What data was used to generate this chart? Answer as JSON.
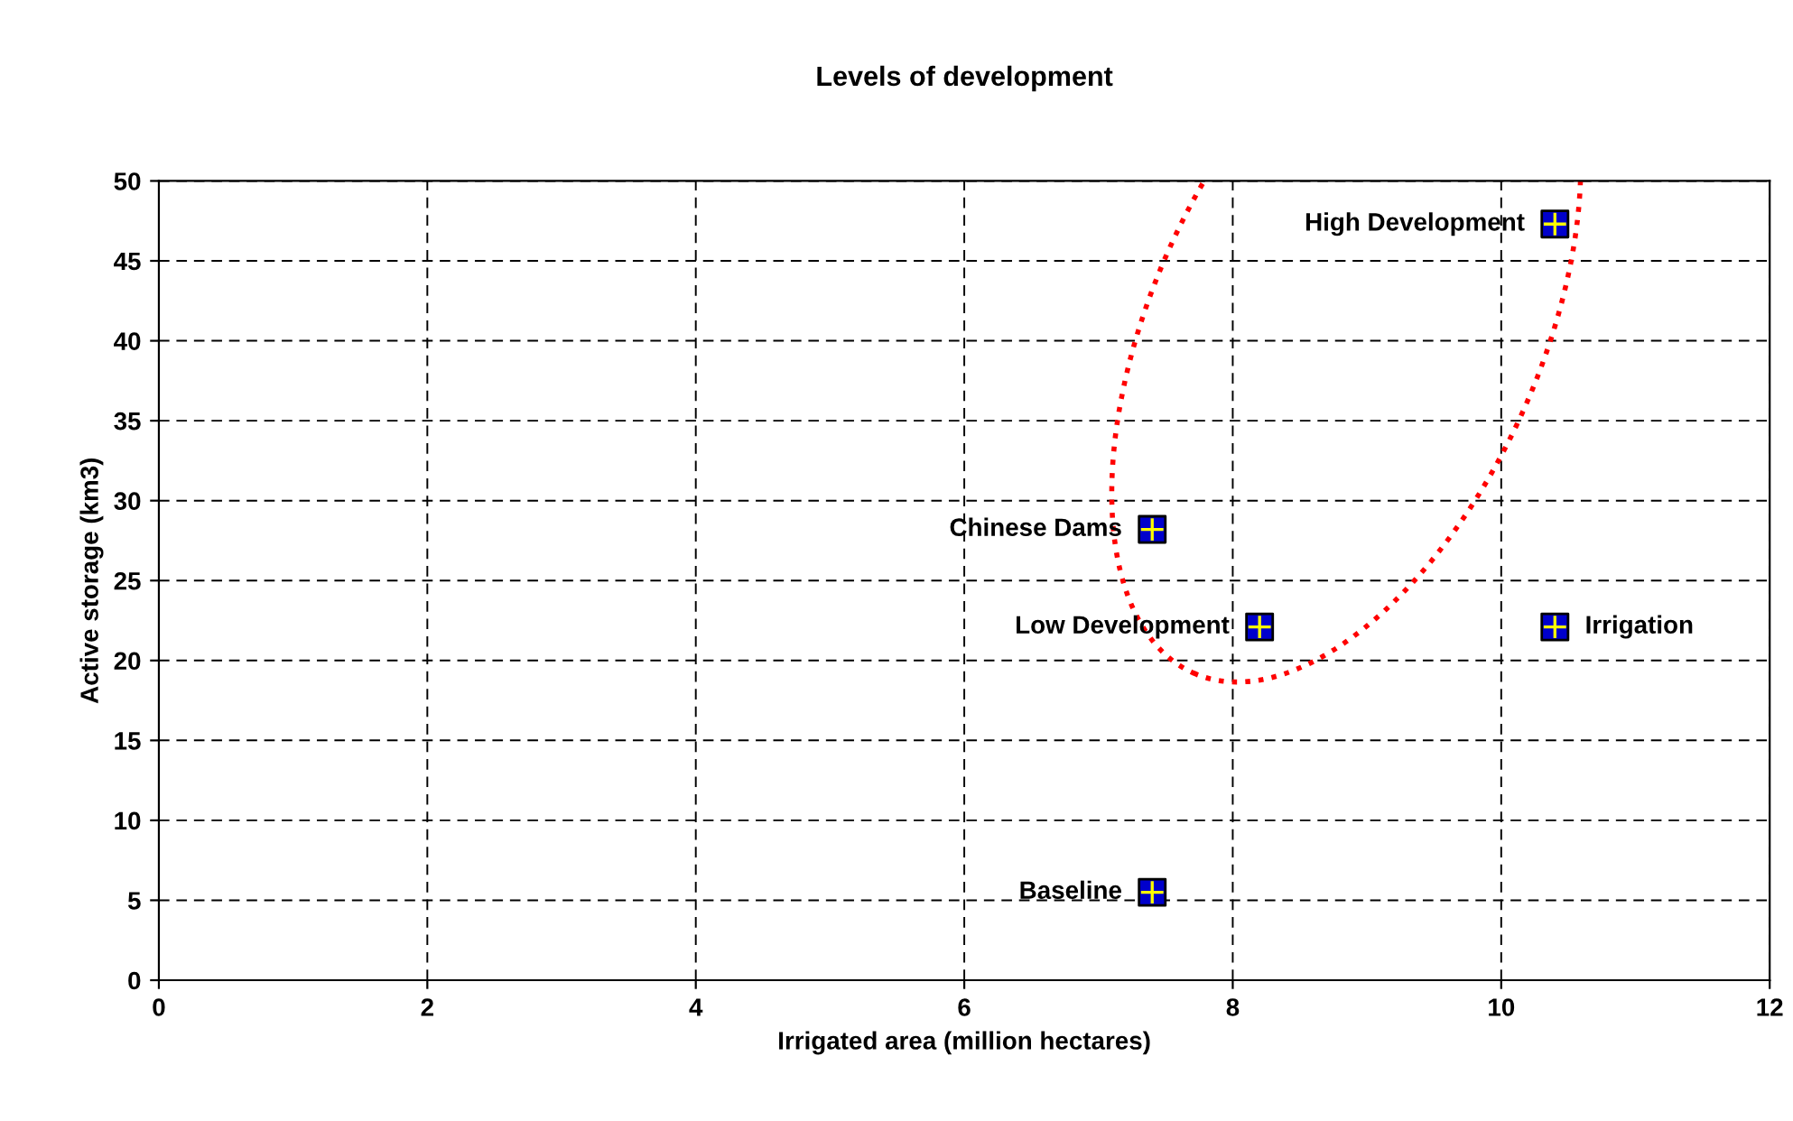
{
  "chart_data": {
    "type": "scatter",
    "title": "Levels of development",
    "xlabel": "Irrigated area (million hectares)",
    "ylabel": "Active storage (km3)",
    "x": [
      10.4,
      7.4,
      8.2,
      10.4,
      7.4
    ],
    "series": [
      {
        "color": "#0000cc",
        "values": [
          47.3,
          28.2,
          22.1,
          22.1,
          5.5
        ]
      }
    ],
    "marker": "square",
    "xlim": [
      0,
      12
    ],
    "xticks": [
      0,
      2,
      4,
      6,
      8,
      10,
      12
    ],
    "ylim": [
      0,
      50
    ],
    "yticks": [
      0,
      5,
      10,
      15,
      20,
      25,
      30,
      35,
      40,
      45,
      50
    ],
    "grid": true,
    "annotations": [
      {
        "text": "High Development",
        "x": 10.4,
        "y": 47.3
      },
      {
        "text": "Chinese Dams",
        "x": 7.4,
        "y": 28.2
      },
      {
        "text": "Low Development",
        "x": 8.2,
        "y": 22.1
      },
      {
        "text": "Irrigation",
        "x": 10.4,
        "y": 22.1
      },
      {
        "text": "Baseline",
        "x": 7.4,
        "y": 5.5
      }
    ]
  }
}
